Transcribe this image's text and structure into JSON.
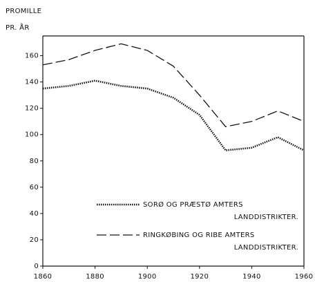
{
  "chart_data": {
    "type": "line",
    "ylabel": [
      "PROMILLE",
      "PR. ÅR"
    ],
    "x": [
      1860,
      1870,
      1880,
      1890,
      1900,
      1910,
      1920,
      1930,
      1940,
      1950,
      1960
    ],
    "series": [
      {
        "name": "SORØ OG PRÆSTØ AMTERS LANDDISTRIKTER.",
        "color": "#111111",
        "style": "dotted",
        "values": [
          135,
          137,
          141,
          137,
          135,
          128,
          115,
          88,
          90,
          98,
          88
        ]
      },
      {
        "name": "RINGKØBING OG RIBE AMTERS LANDDISTRIKTER.",
        "color": "#111111",
        "style": "dashed",
        "values": [
          153,
          157,
          164,
          169,
          164,
          152,
          130,
          106,
          110,
          118,
          110
        ]
      }
    ],
    "xlim": [
      1860,
      1960
    ],
    "xticks": [
      1860,
      1880,
      1900,
      1920,
      1940,
      1960
    ],
    "ylim": [
      0,
      175
    ],
    "yticks": [
      0,
      20,
      40,
      60,
      80,
      100,
      120,
      140,
      160
    ],
    "grid": false
  }
}
